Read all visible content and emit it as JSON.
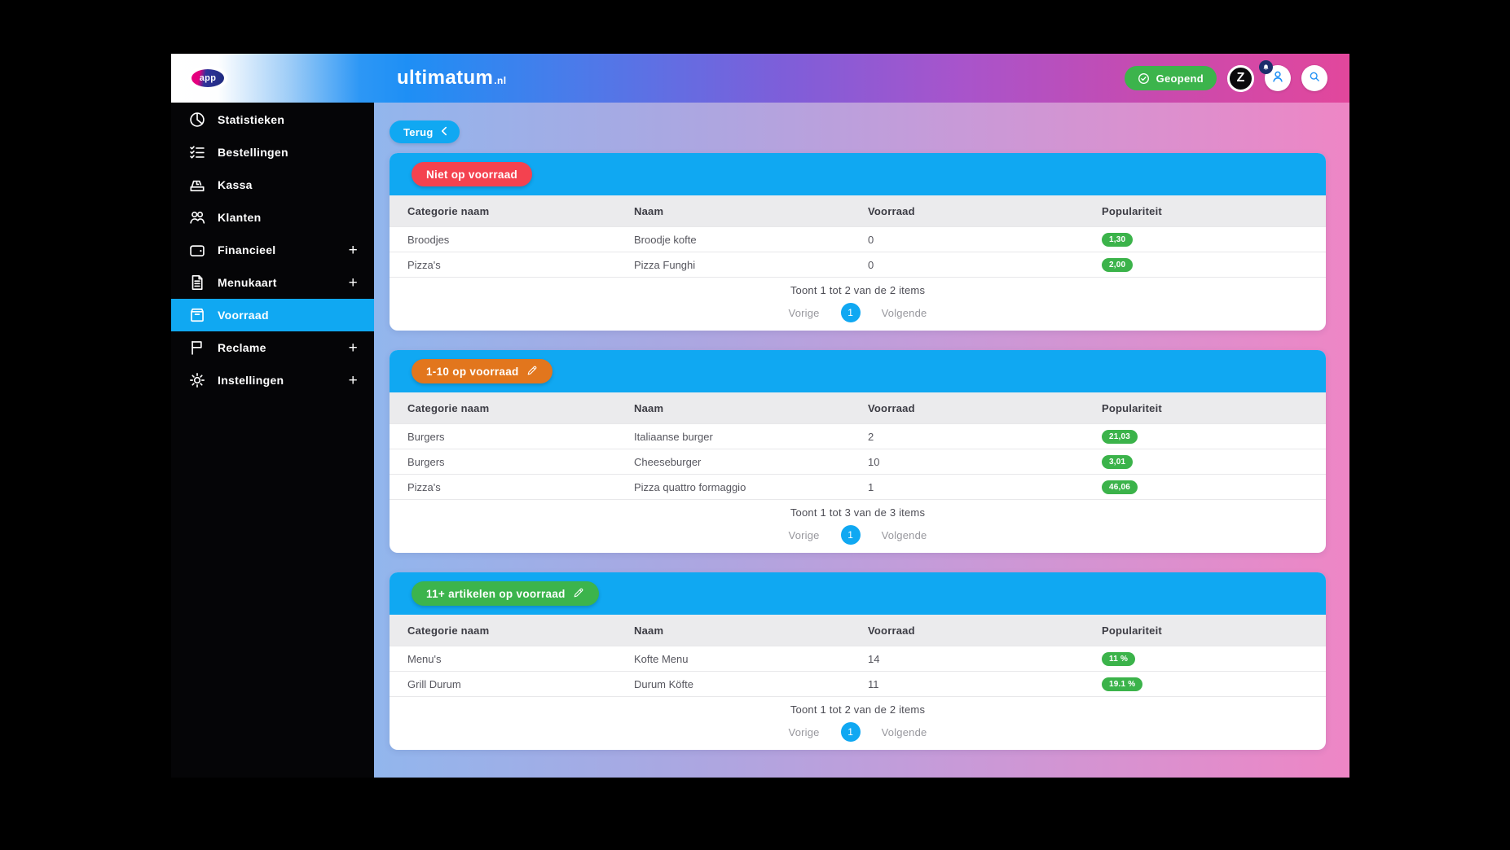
{
  "header": {
    "logo_text": "app",
    "brand": "ultimatum",
    "brand_suffix": ".nl",
    "status_button": "Geopend",
    "avatar_letter": "Z",
    "icons": {
      "status": "check-circle-icon",
      "notification": "bell-icon",
      "account": "person-icon",
      "search": "search-icon"
    }
  },
  "sidebar": {
    "items": [
      {
        "label": "Statistieken",
        "icon": "pie-chart",
        "expandable": false,
        "active": false
      },
      {
        "label": "Bestellingen",
        "icon": "checklist",
        "expandable": false,
        "active": false
      },
      {
        "label": "Kassa",
        "icon": "cash-register",
        "expandable": false,
        "active": false
      },
      {
        "label": "Klanten",
        "icon": "people",
        "expandable": false,
        "active": false
      },
      {
        "label": "Financieel",
        "icon": "wallet",
        "expandable": true,
        "active": false
      },
      {
        "label": "Menukaart",
        "icon": "document",
        "expandable": true,
        "active": false
      },
      {
        "label": "Voorraad",
        "icon": "package",
        "expandable": false,
        "active": true
      },
      {
        "label": "Reclame",
        "icon": "flag",
        "expandable": true,
        "active": false
      },
      {
        "label": "Instellingen",
        "icon": "gear",
        "expandable": true,
        "active": false
      }
    ]
  },
  "content": {
    "back_button": "Terug",
    "back_icon": "chevron-left-icon",
    "tables": [
      {
        "title": "Niet op voorraad",
        "title_color": "#f4424f",
        "editable": false,
        "columns": [
          "Categorie naam",
          "Naam",
          "Voorraad",
          "Populariteit"
        ],
        "rows": [
          {
            "category": "Broodjes",
            "name": "Broodje kofte",
            "stock": "0",
            "popularity": "1,30"
          },
          {
            "category": "Pizza's",
            "name": "Pizza Funghi",
            "stock": "0",
            "popularity": "2,00"
          }
        ],
        "summary": "Toont 1 tot 2 van de 2 items",
        "pagination": {
          "prev": "Vorige",
          "page": "1",
          "next": "Volgende"
        }
      },
      {
        "title": "1-10 op voorraad",
        "title_color": "#e2761d",
        "editable": true,
        "edit_icon": "pencil-icon",
        "columns": [
          "Categorie naam",
          "Naam",
          "Voorraad",
          "Populariteit"
        ],
        "rows": [
          {
            "category": "Burgers",
            "name": "Italiaanse burger",
            "stock": "2",
            "popularity": "21,03"
          },
          {
            "category": "Burgers",
            "name": "Cheeseburger",
            "stock": "10",
            "popularity": "3,01"
          },
          {
            "category": "Pizza's",
            "name": "Pizza quattro formaggio",
            "stock": "1",
            "popularity": "46,06"
          }
        ],
        "summary": "Toont 1 tot 3 van de 3 items",
        "pagination": {
          "prev": "Vorige",
          "page": "1",
          "next": "Volgende"
        }
      },
      {
        "title": "11+ artikelen op voorraad",
        "title_color": "#3cb44c",
        "editable": true,
        "edit_icon": "pencil-icon",
        "columns": [
          "Categorie naam",
          "Naam",
          "Voorraad",
          "Populariteit"
        ],
        "rows": [
          {
            "category": "Menu's",
            "name": "Kofte Menu",
            "stock": "14",
            "popularity": "11 %"
          },
          {
            "category": "Grill Durum",
            "name": "Durum Köfte",
            "stock": "11",
            "popularity": "19.1 %"
          }
        ],
        "summary": "Toont 1 tot 2 van de 2 items",
        "pagination": {
          "prev": "Vorige",
          "page": "1",
          "next": "Volgende"
        }
      }
    ]
  },
  "colors": {
    "accent_blue": "#10a8f2",
    "header_blue": "#1e8ff5",
    "header_pink": "#e2479c",
    "green": "#3cb44c",
    "badge_green": "#3bb34a",
    "red": "#f4424f",
    "orange": "#e2761d",
    "bell_navy": "#1c2e6b"
  }
}
